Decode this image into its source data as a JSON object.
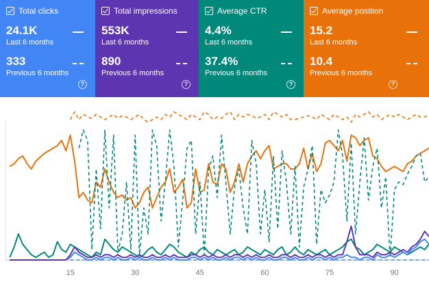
{
  "cards": [
    {
      "label": "Total clicks",
      "value": "24.1K",
      "value_period": "Last 6 months",
      "prev_value": "333",
      "prev_period": "Previous 6 months",
      "color": "#4285f4"
    },
    {
      "label": "Total impressions",
      "value": "553K",
      "value_period": "Last 6 months",
      "prev_value": "890",
      "prev_period": "Previous 6 months",
      "color": "#5e35b1"
    },
    {
      "label": "Average CTR",
      "value": "4.4%",
      "value_period": "Last 6 months",
      "prev_value": "37.4%",
      "prev_period": "Previous 6 months",
      "color": "#00897b"
    },
    {
      "label": "Average position",
      "value": "15.2",
      "value_period": "Last 6 months",
      "prev_value": "10.4",
      "prev_period": "Previous 6 months",
      "color": "#e8710a"
    }
  ],
  "chart_data": {
    "type": "line",
    "title": "",
    "xlabel": "",
    "ylabel": "",
    "x_range": [
      0,
      98
    ],
    "x_ticks": [
      "15",
      "30",
      "45",
      "60",
      "75",
      "90"
    ],
    "x_tick_values": [
      15,
      30,
      45,
      60,
      75,
      90
    ],
    "y_range": [
      0,
      100
    ],
    "series": [
      {
        "name": "Average position (last 6 months)",
        "color": "#e8710a",
        "style": "solid",
        "values": [
          72,
          74,
          78,
          80,
          74,
          70,
          76,
          79,
          82,
          84,
          86,
          88,
          92,
          84,
          96,
          76,
          48,
          52,
          46,
          44,
          60,
          56,
          70,
          60,
          52,
          48,
          50,
          46,
          48,
          40,
          44,
          52,
          56,
          40,
          48,
          56,
          60,
          70,
          52,
          56,
          62,
          40,
          44,
          70,
          52,
          54,
          74,
          60,
          58,
          74,
          70,
          52,
          60,
          74,
          60,
          74,
          80,
          84,
          78,
          84,
          88,
          70,
          72,
          74,
          74,
          70,
          70,
          74,
          86,
          70,
          82,
          68,
          74,
          90,
          92,
          88,
          84,
          92,
          76,
          96,
          94,
          88,
          92,
          94,
          80,
          78,
          72,
          68,
          70,
          72,
          70,
          68,
          74,
          76,
          80,
          82,
          84,
          86
        ]
      },
      {
        "name": "Average position (previous 6 months)",
        "color": "#e8710a",
        "style": "dashed",
        "values": [
          null,
          null,
          null,
          null,
          null,
          null,
          null,
          null,
          null,
          null,
          null,
          null,
          null,
          null,
          108,
          114,
          108,
          112,
          110,
          109,
          112,
          110,
          108,
          110,
          112,
          109,
          111,
          110,
          108,
          110,
          112,
          108,
          106,
          108,
          110,
          108,
          112,
          110,
          114,
          112,
          110,
          108,
          112,
          110,
          108,
          114,
          112,
          108,
          110,
          109,
          112,
          114,
          108,
          112,
          110,
          112,
          111,
          109,
          110,
          112,
          108,
          114,
          112,
          110,
          112,
          108,
          108,
          109,
          110,
          111,
          110,
          108,
          112,
          110,
          108,
          112,
          110,
          108,
          110,
          106,
          112,
          110,
          112,
          114,
          110,
          112,
          108,
          110,
          112,
          110,
          112,
          110,
          108,
          110,
          112,
          110,
          110,
          112
        ]
      },
      {
        "name": "Average CTR (last 6 months)",
        "color": "#00897b",
        "style": "solid",
        "values": [
          2,
          10,
          20,
          12,
          8,
          4,
          2,
          4,
          6,
          2,
          4,
          14,
          8,
          6,
          12,
          10,
          8,
          6,
          4,
          2,
          6,
          4,
          16,
          12,
          8,
          6,
          10,
          8,
          6,
          4,
          2,
          4,
          8,
          10,
          6,
          4,
          8,
          12,
          10,
          6,
          4,
          2,
          6,
          4,
          8,
          10,
          6,
          4,
          8,
          6,
          4,
          6,
          8,
          4,
          6,
          10,
          8,
          6,
          4,
          8,
          6,
          4,
          8,
          10,
          4,
          6,
          10,
          6,
          4,
          8,
          6,
          4,
          6,
          8,
          4,
          6,
          8,
          10,
          14,
          16,
          10,
          8,
          4,
          6,
          8,
          12,
          10,
          8,
          6,
          10,
          8,
          6,
          4,
          6,
          8,
          10,
          8,
          12
        ]
      },
      {
        "name": "Average CTR (previous 6 months)",
        "color": "#00897b",
        "style": "dashed",
        "values": [
          null,
          null,
          null,
          null,
          null,
          null,
          null,
          null,
          null,
          null,
          null,
          null,
          null,
          null,
          null,
          null,
          86,
          100,
          92,
          8,
          70,
          24,
          100,
          40,
          96,
          6,
          20,
          60,
          8,
          96,
          4,
          40,
          20,
          100,
          88,
          30,
          60,
          100,
          72,
          10,
          46,
          86,
          92,
          20,
          60,
          4,
          70,
          80,
          48,
          96,
          60,
          20,
          56,
          70,
          40,
          20,
          92,
          74,
          20,
          54,
          14,
          80,
          24,
          84,
          60,
          20,
          72,
          10,
          56,
          70,
          88,
          12,
          54,
          44,
          50,
          60,
          100,
          80,
          30,
          90,
          20,
          60,
          94,
          46,
          72,
          86,
          40,
          64,
          2,
          54,
          60,
          58,
          66,
          72,
          80,
          82,
          60,
          64
        ]
      },
      {
        "name": "Total clicks (last 6 months)",
        "color": "#4285f4",
        "style": "solid",
        "values": [
          0,
          0,
          0,
          0,
          0,
          0,
          0,
          0,
          0,
          0,
          0,
          0,
          0,
          0,
          2,
          6,
          4,
          2,
          0,
          0,
          2,
          0,
          2,
          2,
          0,
          2,
          0,
          0,
          2,
          0,
          2,
          0,
          0,
          2,
          0,
          0,
          2,
          0,
          2,
          0,
          0,
          0,
          2,
          2,
          0,
          2,
          0,
          2,
          0,
          0,
          2,
          0,
          2,
          2,
          0,
          2,
          0,
          2,
          0,
          0,
          2,
          0,
          0,
          2,
          2,
          0,
          2,
          0,
          0,
          2,
          0,
          2,
          2,
          0,
          2,
          0,
          2,
          2,
          4,
          2,
          2,
          0,
          2,
          2,
          0,
          4,
          2,
          2,
          4,
          2,
          4,
          6,
          4,
          8,
          10,
          14,
          16,
          12
        ]
      },
      {
        "name": "Total impressions (last 6 months)",
        "color": "#5e35b1",
        "style": "solid",
        "values": [
          0,
          0,
          0,
          0,
          0,
          0,
          0,
          0,
          0,
          0,
          0,
          0,
          0,
          0,
          4,
          10,
          6,
          4,
          2,
          2,
          4,
          2,
          4,
          4,
          2,
          4,
          2,
          2,
          4,
          2,
          4,
          2,
          2,
          4,
          2,
          2,
          4,
          2,
          4,
          2,
          2,
          2,
          4,
          4,
          2,
          4,
          2,
          4,
          2,
          2,
          4,
          2,
          4,
          4,
          2,
          4,
          2,
          4,
          2,
          2,
          4,
          2,
          2,
          4,
          4,
          2,
          4,
          2,
          2,
          4,
          2,
          4,
          4,
          2,
          4,
          2,
          4,
          4,
          14,
          26,
          10,
          4,
          4,
          4,
          2,
          6,
          4,
          4,
          6,
          4,
          6,
          8,
          6,
          10,
          12,
          16,
          22,
          18
        ]
      },
      {
        "name": "Total clicks (previous 6 months)",
        "color": "#4285f4",
        "style": "dashed",
        "values": [
          null,
          null,
          null,
          null,
          null,
          null,
          null,
          null,
          null,
          null,
          null,
          null,
          null,
          null,
          0,
          0,
          0,
          0,
          0,
          0,
          0,
          0,
          0,
          0,
          0,
          0,
          0,
          0,
          0,
          0,
          0,
          0,
          0,
          0,
          0,
          0,
          0,
          0,
          0,
          0,
          0,
          0,
          0,
          0,
          0,
          0,
          0,
          0,
          0,
          0,
          0,
          0,
          0,
          0,
          0,
          0,
          0,
          0,
          0,
          0,
          0,
          0,
          0,
          0,
          0,
          0,
          0,
          0,
          0,
          0,
          0,
          0,
          0,
          0,
          0,
          0,
          0,
          0,
          0,
          0,
          0,
          0,
          0,
          0,
          0,
          0,
          0,
          0,
          0,
          0,
          0,
          0,
          0,
          0,
          0,
          0,
          0,
          0
        ]
      }
    ]
  }
}
